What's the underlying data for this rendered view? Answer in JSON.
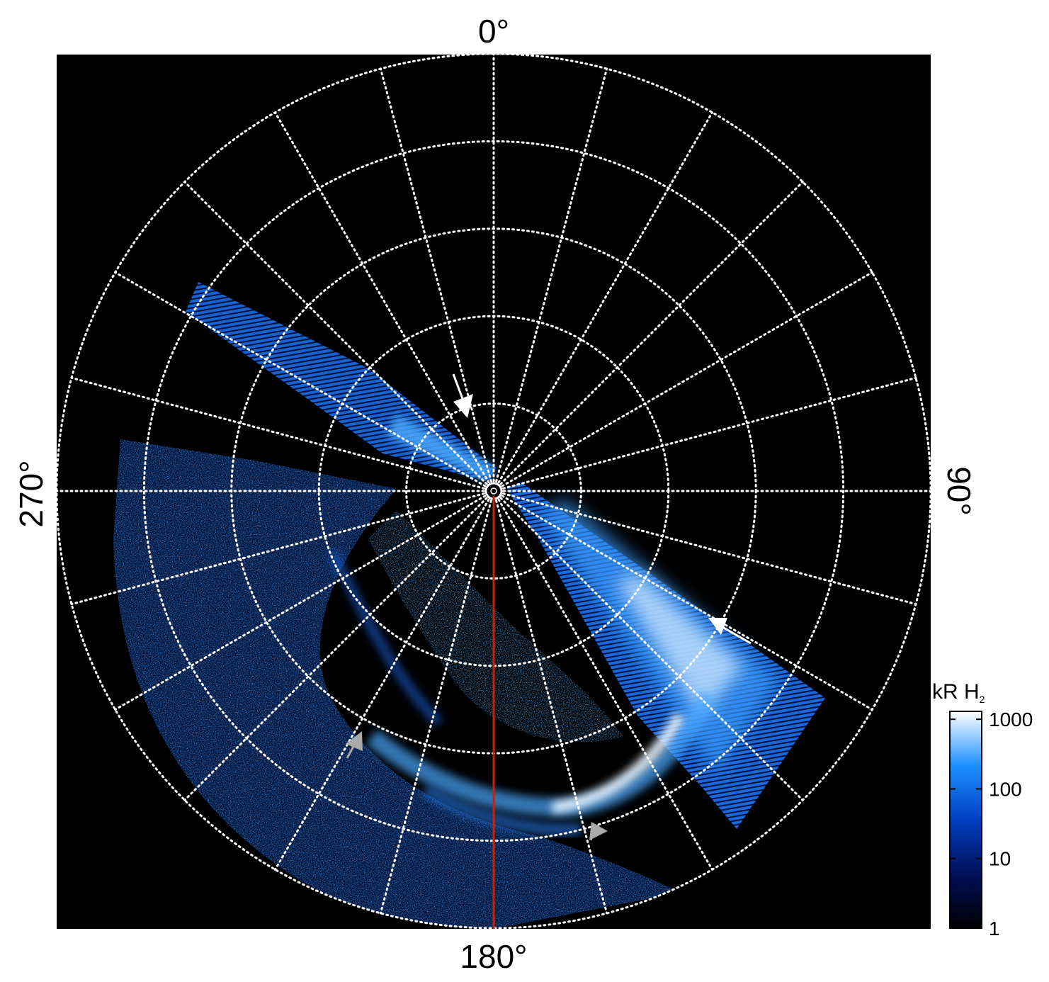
{
  "labels": {
    "top": "0°",
    "bottom": "180°",
    "left": "270°",
    "right": "90°"
  },
  "colorbar": {
    "title_main": "kR H",
    "title_sub": "2",
    "ticks": [
      "1000",
      "100",
      "10",
      "1"
    ],
    "tick_values": [
      1000,
      100,
      10,
      1
    ],
    "scale": "log",
    "colors": {
      "low": "#000000",
      "mid1": "#00105a",
      "mid2": "#0048c8",
      "mid3": "#1e90ff",
      "high": "#ffffff"
    }
  },
  "plot": {
    "background": "#000000",
    "grid_color": "#ffffff",
    "grid_style": "dotted",
    "meridian_line_color": "#cc2200",
    "emission_color": "#2f8cff",
    "longitude_spokes_deg": 15,
    "latitude_rings": 5
  }
}
